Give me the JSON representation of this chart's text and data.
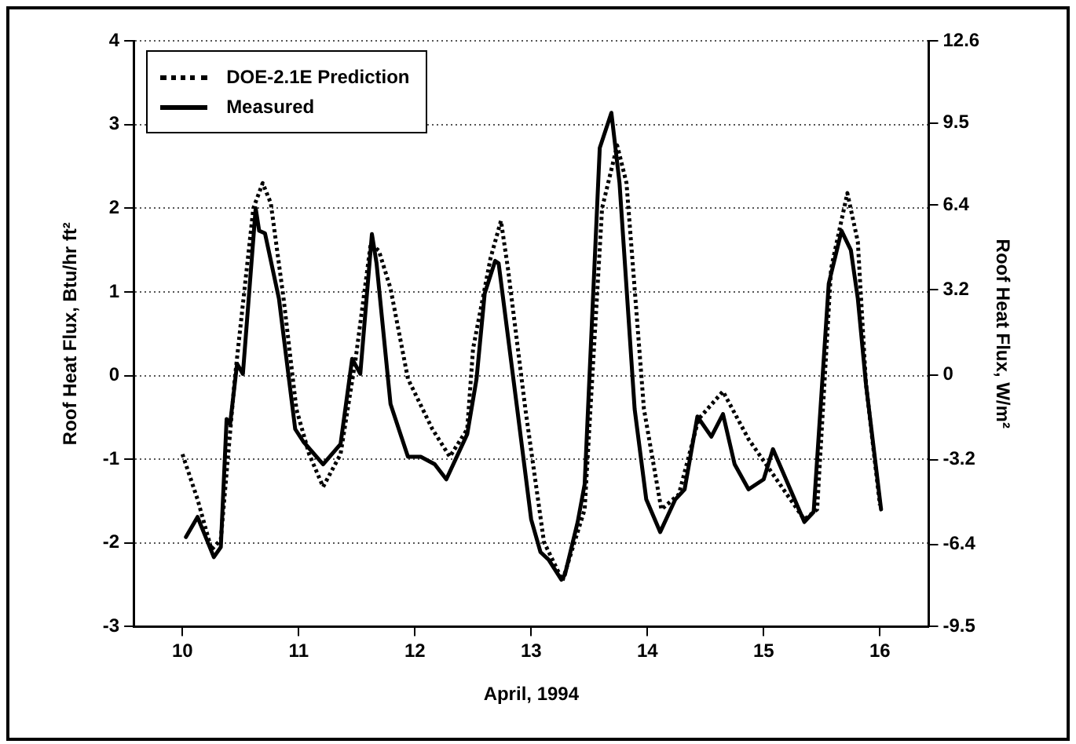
{
  "chart_data": {
    "type": "line",
    "xlabel": "April, 1994",
    "ylabel": "Roof Heat Flux, Btu/hr ft²",
    "y2label": "Roof Heat Flux, W/m²",
    "xlim": [
      9.58,
      16.42
    ],
    "xticks": [
      10,
      11,
      12,
      13,
      14,
      15,
      16
    ],
    "ylim": [
      -3,
      4
    ],
    "yticks": [
      -3,
      -2,
      -1,
      0,
      1,
      2,
      3,
      4
    ],
    "y2lim": [
      -9.5,
      12.6
    ],
    "y2ticks": [
      -9.5,
      -6.4,
      -3.2,
      0,
      3.2,
      6.4,
      9.5,
      12.6
    ],
    "grid": "y",
    "legend": "top left",
    "marker": "none",
    "series": [
      {
        "name": "DOE-2.1E Prediction",
        "color": "#000000",
        "line_style": "dotted",
        "x": [
          10.0,
          10.13,
          10.25,
          10.33,
          10.45,
          10.61,
          10.69,
          10.76,
          10.87,
          10.98,
          11.09,
          11.21,
          11.36,
          11.49,
          11.62,
          11.69,
          11.79,
          11.94,
          12.15,
          12.3,
          12.45,
          12.5,
          12.65,
          12.74,
          12.8,
          12.95,
          13.11,
          13.27,
          13.46,
          13.61,
          13.74,
          13.82,
          13.97,
          14.12,
          14.27,
          14.44,
          14.65,
          14.87,
          15.02,
          15.35,
          15.46,
          15.58,
          15.72,
          15.81,
          15.88,
          16.0
        ],
        "values": [
          -0.94,
          -1.48,
          -2.08,
          -1.96,
          -0.04,
          2.0,
          2.3,
          2.06,
          0.92,
          -0.4,
          -0.94,
          -1.33,
          -0.94,
          0.2,
          1.58,
          1.49,
          1.04,
          -0.04,
          -0.64,
          -0.97,
          -0.64,
          0.32,
          1.4,
          1.85,
          1.28,
          -0.4,
          -1.99,
          -2.45,
          -1.6,
          2.0,
          2.75,
          2.3,
          -0.4,
          -1.6,
          -1.42,
          -0.52,
          -0.19,
          -0.76,
          -1.06,
          -1.72,
          -1.6,
          1.28,
          2.18,
          1.6,
          -0.1,
          -1.55
        ]
      },
      {
        "name": "Measured",
        "color": "#000000",
        "line_style": "solid",
        "x": [
          10.03,
          10.13,
          10.27,
          10.33,
          10.38,
          10.41,
          10.47,
          10.52,
          10.63,
          10.66,
          10.71,
          10.83,
          10.97,
          11.04,
          11.21,
          11.36,
          11.46,
          11.53,
          11.63,
          11.67,
          11.79,
          11.94,
          12.05,
          12.17,
          12.27,
          12.45,
          12.53,
          12.6,
          12.69,
          12.72,
          12.88,
          13.0,
          13.08,
          13.15,
          13.26,
          13.29,
          13.4,
          13.46,
          13.59,
          13.69,
          13.76,
          13.89,
          13.99,
          14.11,
          14.24,
          14.32,
          14.43,
          14.55,
          14.65,
          14.75,
          14.87,
          15.0,
          15.08,
          15.35,
          15.43,
          15.56,
          15.67,
          15.75,
          15.81,
          15.88,
          16.01
        ],
        "values": [
          -1.93,
          -1.69,
          -2.17,
          -2.05,
          -0.52,
          -0.58,
          0.14,
          0.02,
          2.0,
          1.73,
          1.7,
          0.92,
          -0.64,
          -0.79,
          -1.06,
          -0.82,
          0.2,
          0.02,
          1.69,
          1.34,
          -0.34,
          -0.97,
          -0.97,
          -1.06,
          -1.24,
          -0.7,
          -0.04,
          0.98,
          1.37,
          1.34,
          -0.4,
          -1.72,
          -2.11,
          -2.2,
          -2.44,
          -2.38,
          -1.75,
          -1.3,
          2.72,
          3.14,
          2.3,
          -0.4,
          -1.48,
          -1.87,
          -1.48,
          -1.36,
          -0.49,
          -0.73,
          -0.46,
          -1.06,
          -1.36,
          -1.24,
          -0.88,
          -1.75,
          -1.63,
          1.1,
          1.73,
          1.5,
          0.92,
          -0.1,
          -1.6
        ]
      }
    ]
  }
}
